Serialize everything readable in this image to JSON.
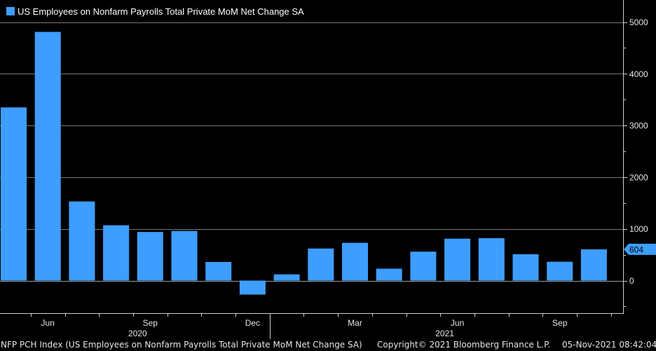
{
  "legend": {
    "label": "US Employees on Nonfarm Payrolls Total Private MoM Net Change SA",
    "swatch_color": "#3d9eff"
  },
  "footer": {
    "ticker": "NFP PCH Index (US Employees on Nonfarm Payrolls Total Private MoM Net Change SA)",
    "copyright": "Copyright© 2021 Bloomberg Finance L.P.",
    "timestamp": "05-Nov-2021 08:42:04"
  },
  "chart_data": {
    "type": "bar",
    "series_name": "US Employees on Nonfarm Payrolls Total Private MoM Net Change SA",
    "categories": [
      "2020-05",
      "2020-06",
      "2020-07",
      "2020-08",
      "2020-09",
      "2020-10",
      "2020-11",
      "2020-12",
      "2021-01",
      "2021-02",
      "2021-03",
      "2021-04",
      "2021-05",
      "2021-06",
      "2021-07",
      "2021-08",
      "2021-09",
      "2021-10"
    ],
    "values": [
      3350,
      4810,
      1530,
      1070,
      940,
      960,
      360,
      -270,
      120,
      620,
      730,
      230,
      560,
      810,
      820,
      510,
      365,
      604
    ],
    "ylim": [
      -650,
      5400
    ],
    "yticks": [
      0,
      1000,
      2000,
      3000,
      4000,
      5000
    ],
    "ytick_labels": [
      "0",
      "1000",
      "2000",
      "3000",
      "4000",
      "5000"
    ],
    "month_ticks": [
      {
        "index": 1,
        "label": "Jun"
      },
      {
        "index": 4,
        "label": "Sep"
      },
      {
        "index": 7,
        "label": "Dec"
      },
      {
        "index": 10,
        "label": "Mar"
      },
      {
        "index": 13,
        "label": "Jun"
      },
      {
        "index": 16,
        "label": "Sep"
      }
    ],
    "year_labels": [
      {
        "index": 4,
        "label": "2020"
      },
      {
        "index": 13,
        "label": "2021"
      }
    ],
    "last_value_label": "604",
    "bar_color": "#3d9eff",
    "grid": true,
    "grid_color": "#777777",
    "axis_side": "right",
    "legend_position": "top-left"
  }
}
